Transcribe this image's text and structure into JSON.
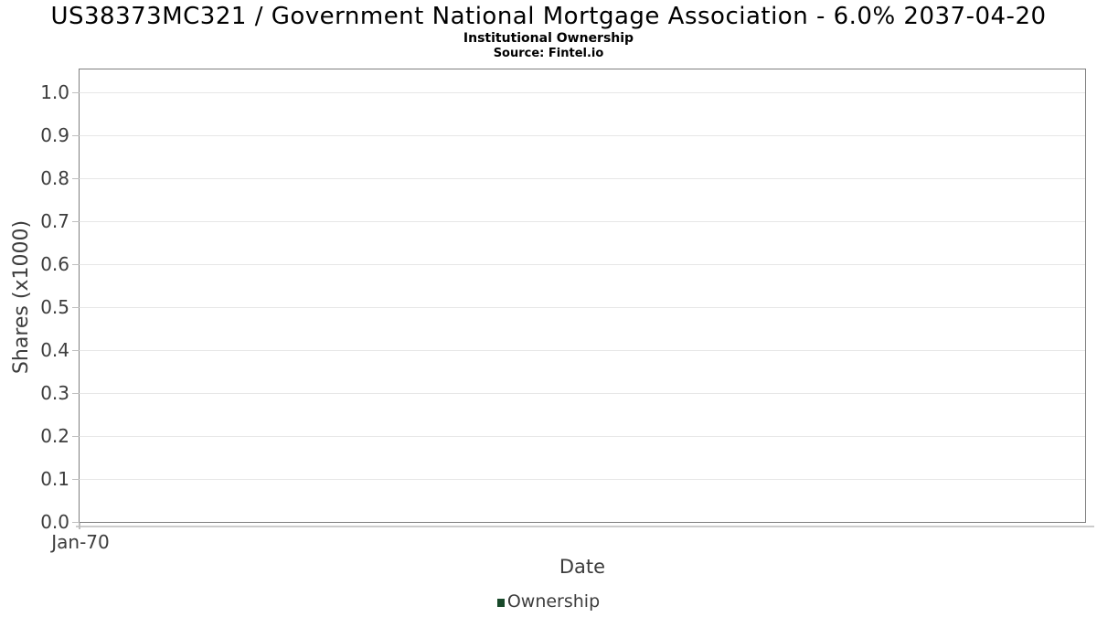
{
  "chart_data": {
    "type": "line",
    "title": "US38373MC321 / Government National Mortgage Association - 6.0% 2037-04-20",
    "subtitle": "Institutional Ownership",
    "source": "Source: Fintel.io",
    "xlabel": "Date",
    "ylabel": "Shares (x1000)",
    "x_tick_labels": [
      "Jan-70"
    ],
    "y_tick_labels": [
      "1.0",
      "0.9",
      "0.8",
      "0.7",
      "0.6",
      "0.5",
      "0.4",
      "0.3",
      "0.2",
      "0.1",
      "0.0"
    ],
    "ylim": [
      0.0,
      1.06
    ],
    "grid": true,
    "legend_position": "bottom",
    "legend": {
      "entries": [
        {
          "label": "Ownership",
          "color": "#18492a"
        }
      ]
    },
    "series": [
      {
        "name": "Ownership",
        "color": "#18492a",
        "x": [],
        "values": []
      }
    ]
  },
  "colors": {
    "title_text": "#000000",
    "axis_text": "#3d3d3d",
    "grid_line": "#e7e7e7",
    "plot_border": "#7f7f7f",
    "tick_mark": "#bfbfbf",
    "legend_swatch": "#18492a",
    "background": "#ffffff"
  }
}
